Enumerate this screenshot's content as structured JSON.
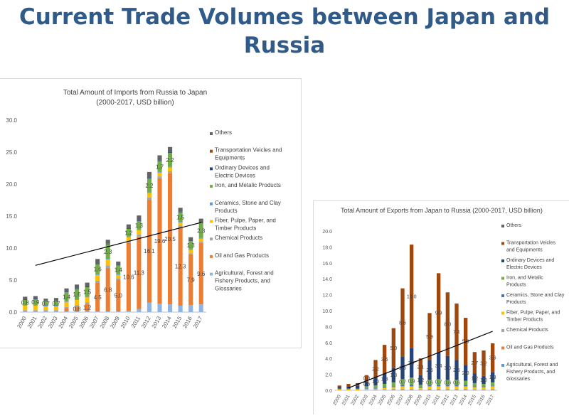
{
  "page": {
    "title": "Current Trade Volumes between Japan and Russia"
  },
  "chart_data": [
    {
      "type": "bar",
      "stacked": true,
      "title": "Total Amount of Imports from Russia to Japan",
      "subtitle": "(2000-2017, USD billion)",
      "xlabel": "",
      "ylabel": "",
      "ylim": [
        0,
        30
      ],
      "yticks": [
        "0.0",
        "5.0",
        "10.0",
        "15.0",
        "20.0",
        "25.0",
        "30.0"
      ],
      "grid": false,
      "legend_position": "right",
      "categories": [
        "2000",
        "2001",
        "2002",
        "2003",
        "2004",
        "2005",
        "2006",
        "2007",
        "2008",
        "2009",
        "2010",
        "2011",
        "2012",
        "2013",
        "2014",
        "2015",
        "2016",
        "2017"
      ],
      "series": [
        {
          "name": "Agricultural, Forest and Fishery Products, and Glossaries",
          "color": "#8db4e2",
          "values": [
            0.1,
            0.1,
            0.1,
            0.1,
            0.1,
            0.1,
            0.1,
            0.1,
            0.1,
            0.1,
            0.2,
            0.5,
            1.5,
            1.3,
            1.2,
            1.0,
            1.1,
            1.2
          ]
        },
        {
          "name": "Oil and Gas Products",
          "color": "#ed7d31",
          "values": [
            0.0,
            0.0,
            0.0,
            0.0,
            0.5,
            0.8,
            1.2,
            4.5,
            6.8,
            5.0,
            10.6,
            11.3,
            16.1,
            19.6,
            20.5,
            12.3,
            7.9,
            9.6
          ],
          "labels": [
            "0.0",
            "0.0",
            "0.0",
            "0.0",
            "0.5",
            "0.8",
            "1.2",
            "4.5",
            "6.8",
            "5.0",
            "10.6",
            "11.3",
            "16.1",
            "19.6",
            "20.5",
            "12.3",
            "7.9",
            "9.6"
          ]
        },
        {
          "name": "Chemical Products",
          "color": "#a5a5a5",
          "values": [
            0.2,
            0.2,
            0.2,
            0.2,
            0.2,
            0.2,
            0.2,
            0.3,
            0.4,
            0.2,
            0.3,
            0.3,
            0.3,
            0.3,
            0.3,
            0.2,
            0.2,
            0.2
          ]
        },
        {
          "name": "Fiber, Pulpe, Paper, and Timber Products",
          "color": "#ffc000",
          "values": [
            0.7,
            0.7,
            0.6,
            0.6,
            0.8,
            0.8,
            0.8,
            0.9,
            0.9,
            0.5,
            0.6,
            0.7,
            0.7,
            0.6,
            0.6,
            0.5,
            0.5,
            0.5
          ]
        },
        {
          "name": "Ceramics, Stone and Clay Products",
          "color": "#5b9bd5",
          "values": [
            0.1,
            0.1,
            0.1,
            0.1,
            0.1,
            0.1,
            0.1,
            0.1,
            0.1,
            0.1,
            0.1,
            0.1,
            0.1,
            0.1,
            0.1,
            0.1,
            0.1,
            0.1
          ]
        },
        {
          "name": "Iron, and Metalic Products",
          "color": "#70ad47",
          "values": [
            0.8,
            0.9,
            0.7,
            0.7,
            1.4,
            1.6,
            1.5,
            1.6,
            2.3,
            1.4,
            1.2,
            1.3,
            2.2,
            1.7,
            2.2,
            1.5,
            1.3,
            2.3
          ],
          "labels": [
            "0.8",
            "0.9",
            "0.7",
            "0.7",
            "1.4",
            "1.6",
            "1.5",
            "1.6",
            "2.3",
            "1.4",
            "1.2",
            "1.3",
            "2.2",
            "1.7",
            "2.2",
            "1.5",
            "1.3",
            "2.3"
          ]
        },
        {
          "name": "Ordinary Devices and Electric Devices",
          "color": "#264478",
          "values": [
            0.1,
            0.1,
            0.1,
            0.1,
            0.1,
            0.1,
            0.1,
            0.1,
            0.1,
            0.1,
            0.1,
            0.1,
            0.1,
            0.1,
            0.1,
            0.1,
            0.1,
            0.1
          ]
        },
        {
          "name": "Transportation Veicles and Equipments",
          "color": "#9e480e",
          "values": [
            0.0,
            0.0,
            0.0,
            0.0,
            0.0,
            0.0,
            0.0,
            0.0,
            0.0,
            0.0,
            0.0,
            0.0,
            0.0,
            0.0,
            0.0,
            0.0,
            0.0,
            0.0
          ]
        },
        {
          "name": "Others",
          "color": "#636363",
          "values": [
            0.4,
            0.4,
            0.3,
            0.4,
            0.5,
            0.6,
            0.6,
            0.7,
            0.6,
            0.5,
            0.6,
            0.8,
            0.9,
            0.8,
            0.8,
            0.6,
            0.5,
            0.6
          ]
        }
      ],
      "trendline": {
        "from": [
          2001,
          7.3
        ],
        "to": [
          2017,
          14.0
        ]
      }
    },
    {
      "type": "bar",
      "stacked": true,
      "title": "Total Amount of Exports from Japan to Russia (2000-2017, USD billion)",
      "xlabel": "",
      "ylabel": "",
      "ylim": [
        0,
        20
      ],
      "yticks": [
        "0.0",
        "2.0",
        "4.0",
        "6.0",
        "8.0",
        "10.0",
        "12.0",
        "14.0",
        "16.0",
        "18.0",
        "20.0"
      ],
      "grid": false,
      "legend_position": "right",
      "categories": [
        "2000",
        "2001",
        "2002",
        "2003",
        "2004",
        "2005",
        "2006",
        "2007",
        "2008",
        "2009",
        "2010",
        "2011",
        "2012",
        "2013",
        "2014",
        "2015",
        "2016",
        "2017"
      ],
      "series": [
        {
          "name": "Agricultural, Forest and Fishery Products, and Glossaries",
          "color": "#5b9bd5",
          "values": [
            0.0,
            0.0,
            0.0,
            0.0,
            0.0,
            0.0,
            0.0,
            0.0,
            0.0,
            0.0,
            0.0,
            0.0,
            0.0,
            0.0,
            0.0,
            0.0,
            0.0,
            0.0
          ]
        },
        {
          "name": "Oil and Gas Products",
          "color": "#ed7d31",
          "values": [
            0.0,
            0.0,
            0.0,
            0.0,
            0.0,
            0.0,
            0.0,
            0.0,
            0.0,
            0.0,
            0.0,
            0.0,
            0.0,
            0.0,
            0.0,
            0.0,
            0.0,
            0.0
          ]
        },
        {
          "name": "Chemical Products",
          "color": "#a5a5a5",
          "values": [
            0.0,
            0.0,
            0.0,
            0.1,
            0.1,
            0.1,
            0.2,
            0.2,
            0.2,
            0.1,
            0.2,
            0.2,
            0.2,
            0.2,
            0.2,
            0.1,
            0.1,
            0.2
          ]
        },
        {
          "name": "Fiber, Pulpe, Paper, and Timber Products",
          "color": "#ffc000",
          "values": [
            0.1,
            0.1,
            0.1,
            0.1,
            0.1,
            0.2,
            0.2,
            0.3,
            0.3,
            0.2,
            0.3,
            0.3,
            0.3,
            0.3,
            0.3,
            0.3,
            0.3,
            0.3
          ]
        },
        {
          "name": "Ceramics, Stone and Clay Products",
          "color": "#4472c4",
          "values": [
            0.0,
            0.0,
            0.0,
            0.1,
            0.1,
            0.1,
            0.1,
            0.2,
            0.2,
            0.1,
            0.2,
            0.2,
            0.2,
            0.2,
            0.2,
            0.1,
            0.1,
            0.1
          ]
        },
        {
          "name": "Iron, and Metalic Products",
          "color": "#70ad47",
          "values": [
            0.1,
            0.1,
            0.1,
            0.2,
            0.3,
            0.4,
            0.5,
            0.7,
            0.9,
            0.3,
            0.6,
            0.7,
            0.6,
            0.6,
            0.5,
            0.4,
            0.3,
            0.4
          ],
          "labels": [
            "0.1",
            "0.1",
            "0.1",
            "0.2",
            "0.3",
            "0.4",
            "0.5",
            "0.7",
            "0.9",
            "0.3",
            "0.6",
            "0.7",
            "0.6",
            "0.6",
            "0.5",
            "0.4",
            "0.3",
            "0.4"
          ]
        },
        {
          "name": "Ordinary Devices and Electric Devices",
          "color": "#264478",
          "values": [
            0.2,
            0.3,
            0.4,
            0.6,
            1.0,
            1.3,
            1.8,
            2.8,
            3.7,
            1.2,
            2.5,
            3.4,
            3.0,
            2.5,
            2.0,
            1.2,
            1.0,
            1.3
          ],
          "labels": [
            "0.2",
            "0.3",
            "0.4",
            "0.6",
            "1.0",
            "1.3",
            "1.8",
            "2.8",
            "3.7",
            "1.2",
            "2.5",
            "3.4",
            "3.0",
            "2.5",
            "2.0",
            "1.2",
            "1.0",
            "1.3"
          ]
        },
        {
          "name": "Transportation Veicles and Equipments",
          "color": "#9e480e",
          "values": [
            0.2,
            0.3,
            0.3,
            0.8,
            2.2,
            3.6,
            5.0,
            8.6,
            13.0,
            2.1,
            5.9,
            9.9,
            8.0,
            7.1,
            5.9,
            2.7,
            3.2,
            3.6
          ],
          "labels": [
            "0.2",
            "0.3",
            "0.3",
            "0.8",
            "2.2",
            "3.6",
            "5.0",
            "8.6",
            "13.0",
            "2.1",
            "5.9",
            "9.9",
            "8.0",
            "7.1",
            "5.9",
            "2.7",
            "3.2",
            "3.6"
          ]
        },
        {
          "name": "Others",
          "color": "#636363",
          "values": [
            0.0,
            0.0,
            0.0,
            0.0,
            0.0,
            0.0,
            0.0,
            0.0,
            0.0,
            0.0,
            0.0,
            0.0,
            0.0,
            0.0,
            0.0,
            0.0,
            0.0,
            0.0
          ]
        }
      ],
      "trendline": {
        "from": [
          2001,
          0.3
        ],
        "to": [
          2017,
          7.4
        ]
      }
    }
  ]
}
